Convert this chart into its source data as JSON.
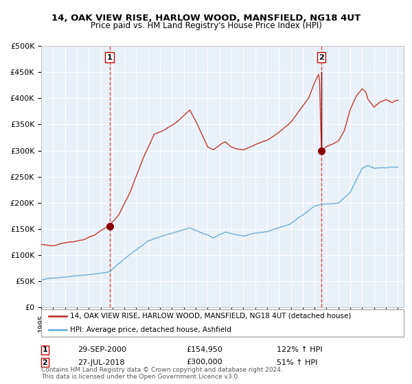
{
  "title": "14, OAK VIEW RISE, HARLOW WOOD, MANSFIELD, NG18 4UT",
  "subtitle": "Price paid vs. HM Land Registry's House Price Index (HPI)",
  "legend_line1": "14, OAK VIEW RISE, HARLOW WOOD, MANSFIELD, NG18 4UT (detached house)",
  "legend_line2": "HPI: Average price, detached house, Ashfield",
  "sale1_label": "1",
  "sale1_date": "29-SEP-2000",
  "sale1_price": "£154,950",
  "sale1_hpi": "122% ↑ HPI",
  "sale2_label": "2",
  "sale2_date": "27-JUL-2018",
  "sale2_price": "£300,000",
  "sale2_hpi": "51% ↑ HPI",
  "footer": "Contains HM Land Registry data © Crown copyright and database right 2024.\nThis data is licensed under the Open Government Licence v3.0.",
  "hpi_color": "#6baed6",
  "price_color": "#c0392b",
  "sale_marker_color": "#8b0000",
  "bg_color": "#e8f0f8",
  "grid_color": "#ffffff",
  "sale1_x": 2000.75,
  "sale2_x": 2018.57,
  "sale1_y": 154950,
  "sale2_y": 300000,
  "ylim": [
    0,
    500000
  ],
  "xlim_left": 1995.0,
  "xlim_right": 2025.5
}
